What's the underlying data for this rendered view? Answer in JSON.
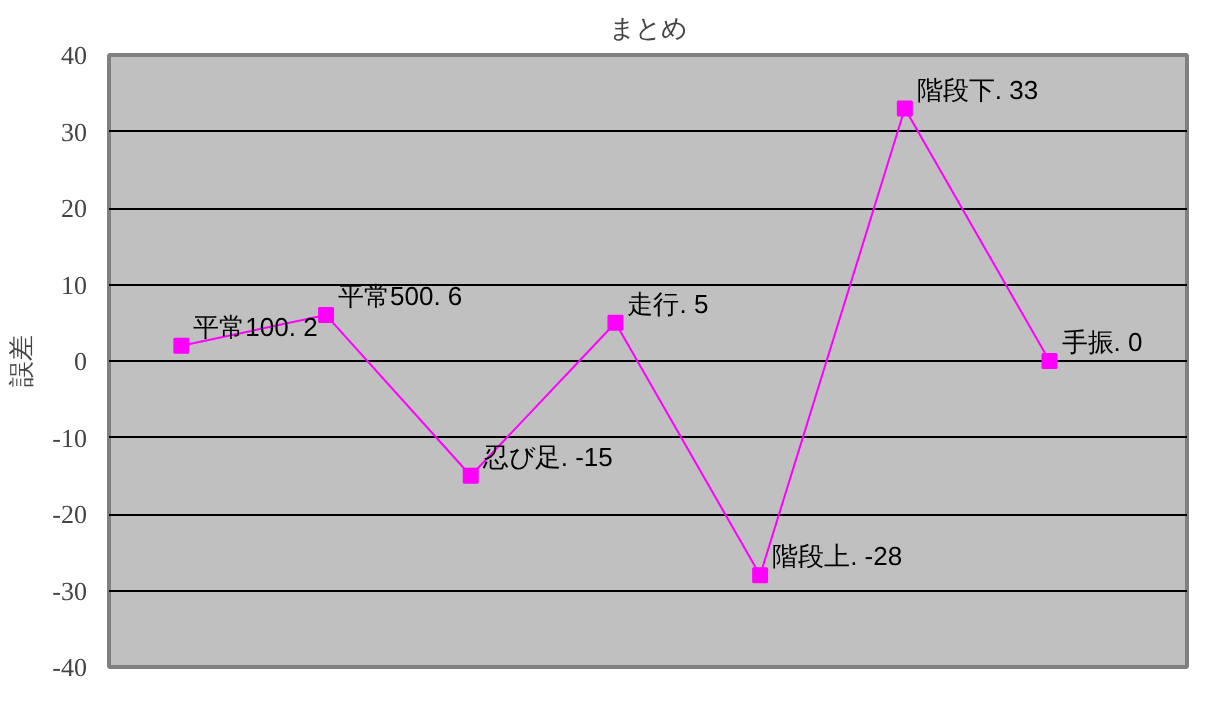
{
  "chart_data": {
    "type": "line",
    "title": "まとめ",
    "ylabel": "誤差",
    "categories": [
      null,
      null,
      null,
      null,
      null,
      null,
      null
    ],
    "series": [
      {
        "color": "#ff00ff",
        "values": [
          2,
          6,
          -15,
          5,
          -28,
          33,
          0
        ],
        "value_labels": [
          "平常100. 2",
          "平常500. 6",
          "忍び足. -15",
          "走行. 5",
          "階段上. -28",
          "階段下. 33",
          "手振. 0"
        ]
      }
    ],
    "ylim": [
      -40,
      40
    ],
    "yticks": [
      -40,
      -30,
      -20,
      -10,
      0,
      10,
      20,
      30,
      40
    ],
    "grid": "y",
    "marker": "square",
    "line_style": "solid",
    "tick_labels": "y"
  }
}
